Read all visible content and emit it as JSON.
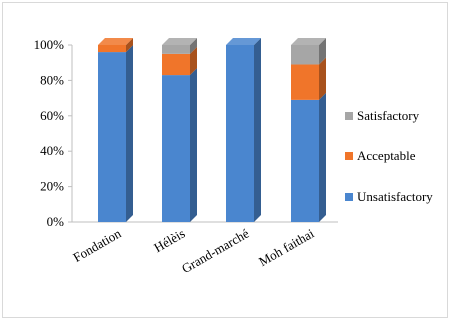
{
  "chart_data": {
    "type": "bar",
    "stacked": true,
    "percent_stacked": true,
    "three_d": true,
    "categories": [
      "Fondation",
      "Hélèis",
      "Grand-marché",
      "Moh faithai"
    ],
    "series": [
      {
        "name": "Unsatisfactory",
        "color": "#4a86cf",
        "values": [
          96,
          83,
          100,
          69
        ]
      },
      {
        "name": "Acceptable",
        "color": "#f0752a",
        "values": [
          4,
          12,
          0,
          20
        ]
      },
      {
        "name": "Satisfactory",
        "color": "#a6a6a6",
        "values": [
          0,
          5,
          0,
          11
        ]
      }
    ],
    "y_ticks": [
      "0%",
      "20%",
      "40%",
      "60%",
      "80%",
      "100%"
    ],
    "ylim": [
      0,
      100
    ],
    "grid": false,
    "legend_position": "right"
  }
}
